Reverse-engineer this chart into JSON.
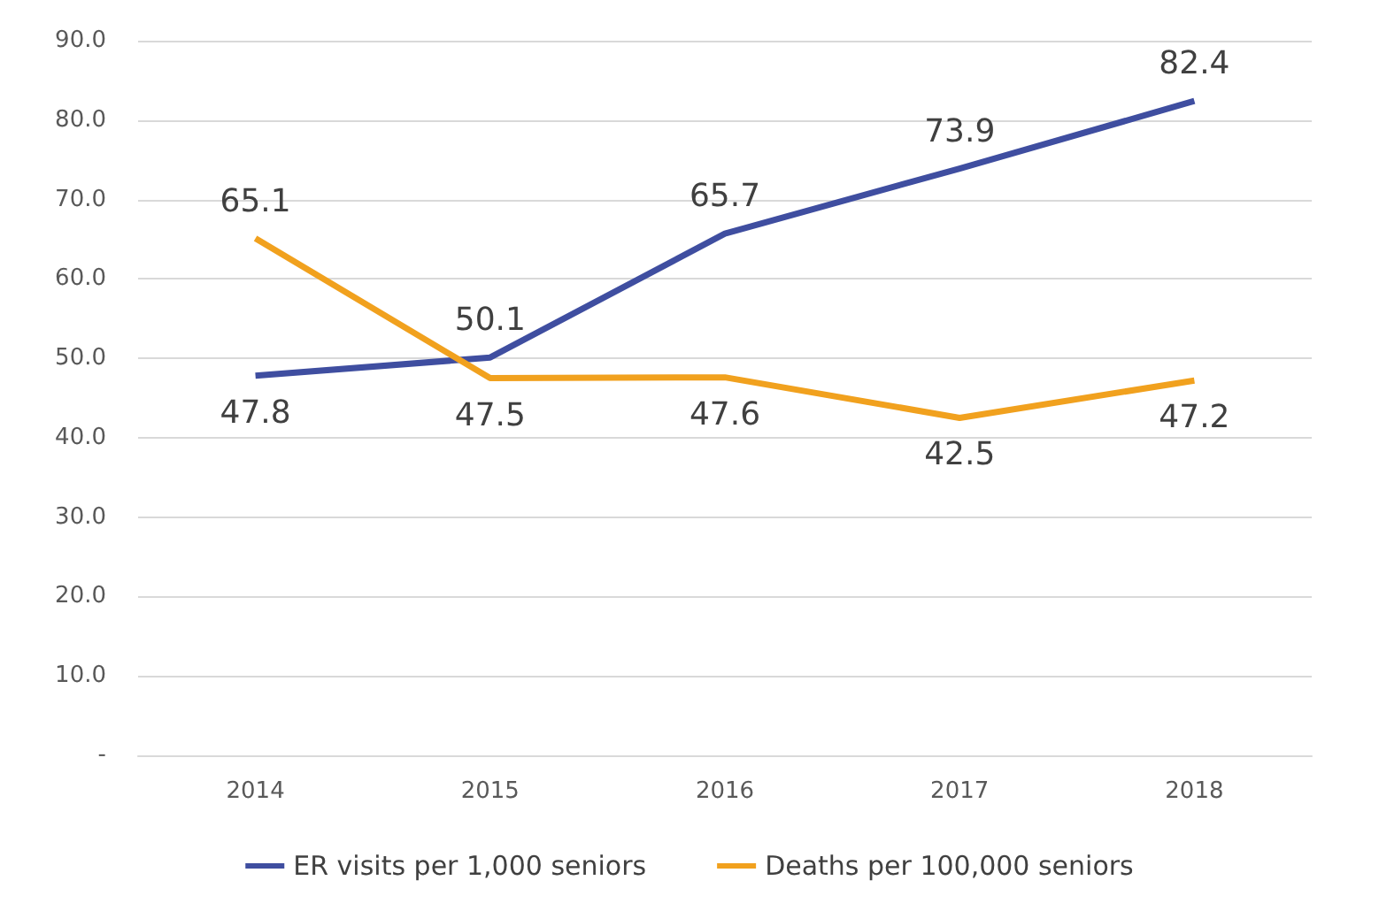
{
  "chart_data": {
    "type": "line",
    "categories": [
      "2014",
      "2015",
      "2016",
      "2017",
      "2018"
    ],
    "series": [
      {
        "name": "ER visits per 1,000 seniors",
        "color": "#3f4ea0",
        "values": [
          47.8,
          50.1,
          65.7,
          73.9,
          82.4
        ]
      },
      {
        "name": "Deaths per 100,000 seniors",
        "color": "#f1a11e",
        "values": [
          65.1,
          47.5,
          47.6,
          42.5,
          47.2
        ]
      }
    ],
    "ylim": [
      0,
      90
    ],
    "yticks": [
      {
        "value": 0,
        "label": "-"
      },
      {
        "value": 10,
        "label": "10.0"
      },
      {
        "value": 20,
        "label": "20.0"
      },
      {
        "value": 30,
        "label": "30.0"
      },
      {
        "value": 40,
        "label": "40.0"
      },
      {
        "value": 50,
        "label": "50.0"
      },
      {
        "value": 60,
        "label": "60.0"
      },
      {
        "value": 70,
        "label": "70.0"
      },
      {
        "value": 80,
        "label": "80.0"
      },
      {
        "value": 90,
        "label": "90.0"
      }
    ],
    "grid": "y",
    "legend": "bottom",
    "data_labels": true,
    "marker": "none",
    "line_style": "solid"
  }
}
